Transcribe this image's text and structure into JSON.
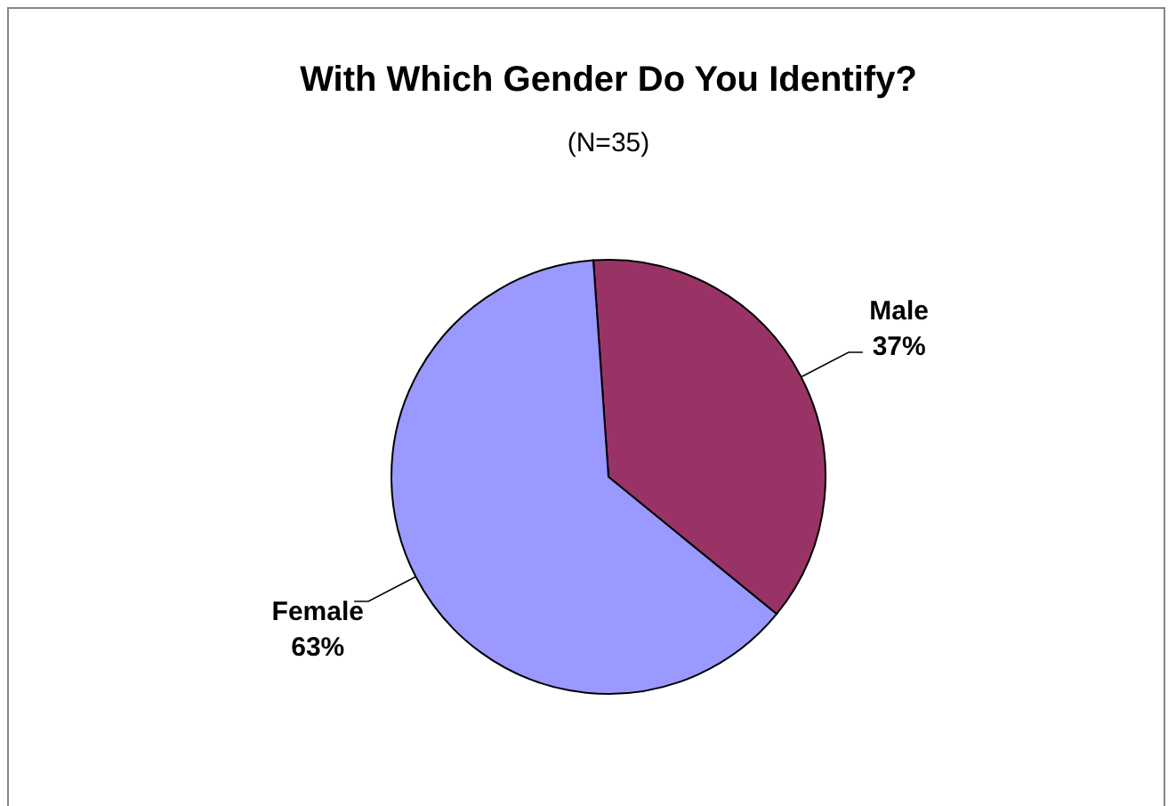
{
  "chart_data": {
    "type": "pie",
    "title": "With Which Gender Do You Identify?",
    "subtitle": "(N=35)",
    "categories": [
      "Male",
      "Female"
    ],
    "values": [
      37,
      63
    ],
    "colors": [
      "#993366",
      "#9999ff"
    ],
    "value_labels": [
      "37%",
      "63%"
    ]
  }
}
